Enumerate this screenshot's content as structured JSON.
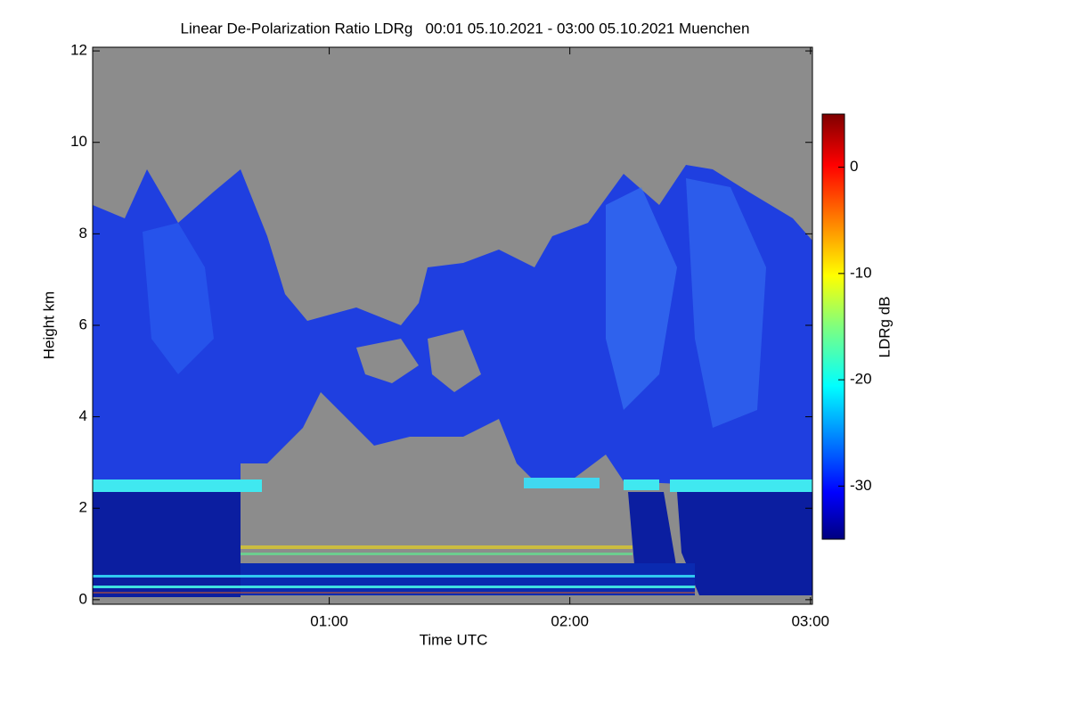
{
  "chart_data": {
    "type": "heatmap",
    "title": "Linear De-Polarization Ratio LDRg   00:01 05.10.2021 - 03:00 05.10.2021 Muenchen",
    "xlabel": "Time UTC",
    "ylabel": "Height km",
    "xlim": [
      1,
      180.5
    ],
    "xticks": [
      {
        "value": 60,
        "label": "01:00"
      },
      {
        "value": 120,
        "label": "02:00"
      },
      {
        "value": 180,
        "label": "03:00"
      }
    ],
    "ylim": [
      -0.1,
      12.08
    ],
    "yticks": [
      0,
      2,
      4,
      6,
      8,
      10,
      12
    ],
    "colormap": "jet",
    "colorbar": {
      "label": "LDRg dB",
      "lim": [
        -35,
        5
      ],
      "ticks": [
        0,
        -10,
        -20,
        -30
      ]
    }
  }
}
